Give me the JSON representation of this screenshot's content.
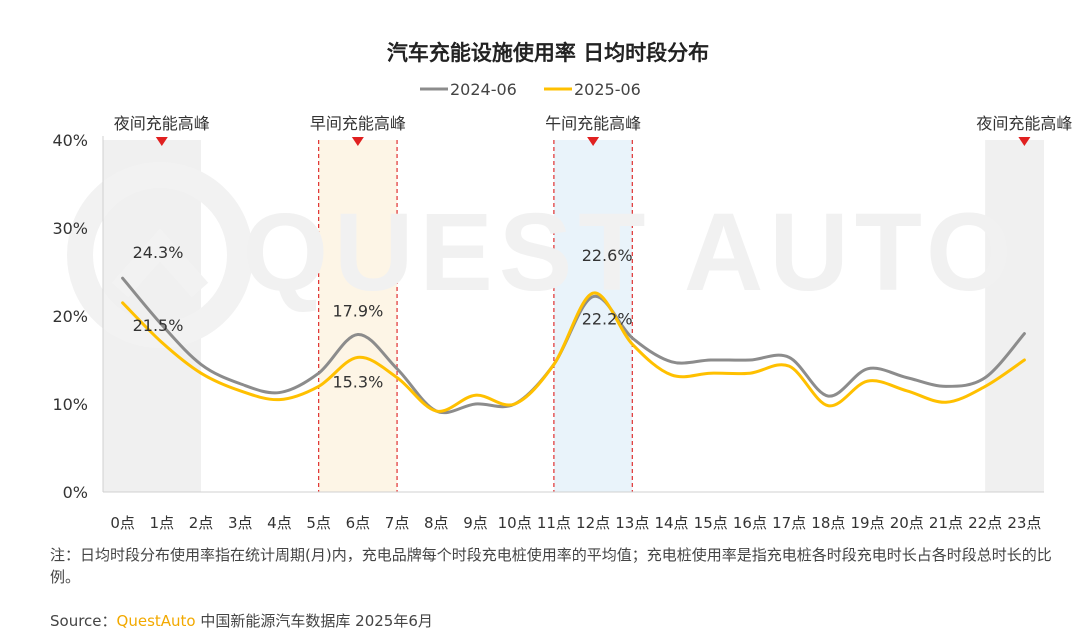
{
  "title": "汽车充能设施使用率 日均时段分布",
  "watermark": "QUEST AUTO",
  "legend": [
    {
      "name": "2024-06",
      "color": "#8c8c8c"
    },
    {
      "name": "2025-06",
      "color": "#ffc000"
    }
  ],
  "peaks": [
    {
      "label": "夜间充能高峰",
      "from": 0,
      "to": 2,
      "fill": "#f0f0f0",
      "dashed": false,
      "marker_at": 1
    },
    {
      "label": "早间充能高峰",
      "from": 5,
      "to": 7,
      "fill": "#fdf5e6",
      "dashed": true,
      "marker_at": 6
    },
    {
      "label": "午间充能高峰",
      "from": 11,
      "to": 13,
      "fill": "#e9f3fa",
      "dashed": true,
      "marker_at": 12
    },
    {
      "label": "夜间充能高峰",
      "from": 22,
      "to": 23,
      "fill": "#f0f0f0",
      "dashed": false,
      "marker_at": 23
    }
  ],
  "chart_data": {
    "type": "line",
    "title": "汽车充能设施使用率 日均时段分布",
    "categories": [
      "0点",
      "1点",
      "2点",
      "3点",
      "4点",
      "5点",
      "6点",
      "7点",
      "8点",
      "9点",
      "10点",
      "11点",
      "12点",
      "13点",
      "14点",
      "15点",
      "16点",
      "17点",
      "18点",
      "19点",
      "20点",
      "21点",
      "22点",
      "23点"
    ],
    "series": [
      {
        "name": "2024-06",
        "color": "#8c8c8c",
        "values": [
          24.3,
          19.0,
          14.5,
          12.3,
          11.3,
          13.5,
          17.9,
          14.0,
          9.2,
          10.0,
          10.0,
          14.5,
          22.2,
          17.5,
          14.8,
          15.0,
          15.0,
          15.3,
          10.9,
          14.0,
          13.0,
          12.0,
          13.0,
          18.0
        ]
      },
      {
        "name": "2025-06",
        "color": "#ffc000",
        "values": [
          21.5,
          17.0,
          13.5,
          11.5,
          10.5,
          12.0,
          15.3,
          13.0,
          9.2,
          11.0,
          10.0,
          14.5,
          22.6,
          16.8,
          13.3,
          13.5,
          13.5,
          14.3,
          9.8,
          12.6,
          11.5,
          10.2,
          12.0,
          15.0
        ]
      }
    ],
    "ylim": [
      0,
      40
    ],
    "yticks": [
      "0%",
      "10%",
      "20%",
      "30%",
      "40%"
    ],
    "ytick_values": [
      0,
      10,
      20,
      30,
      40
    ],
    "grid": false,
    "legend_position": "top-center",
    "data_labels": [
      {
        "text": "24.3%",
        "series": 0,
        "index": 0
      },
      {
        "text": "21.5%",
        "series": 1,
        "index": 0
      },
      {
        "text": "17.9%",
        "series": 0,
        "index": 6
      },
      {
        "text": "15.3%",
        "series": 1,
        "index": 6
      },
      {
        "text": "22.6%",
        "series": 1,
        "index": 12
      },
      {
        "text": "22.2%",
        "series": 0,
        "index": 12
      }
    ]
  },
  "note": "注：日均时段分布使用率指在统计周期(月)内，充电品牌每个时段充电桩使用率的平均值；充电桩使用率是指充电桩各时段充电时长占各时段总时长的比例。",
  "source": {
    "prefix": "Source：",
    "brand": "QuestAuto",
    "rest": " 中国新能源汽车数据库 2025年6月"
  }
}
